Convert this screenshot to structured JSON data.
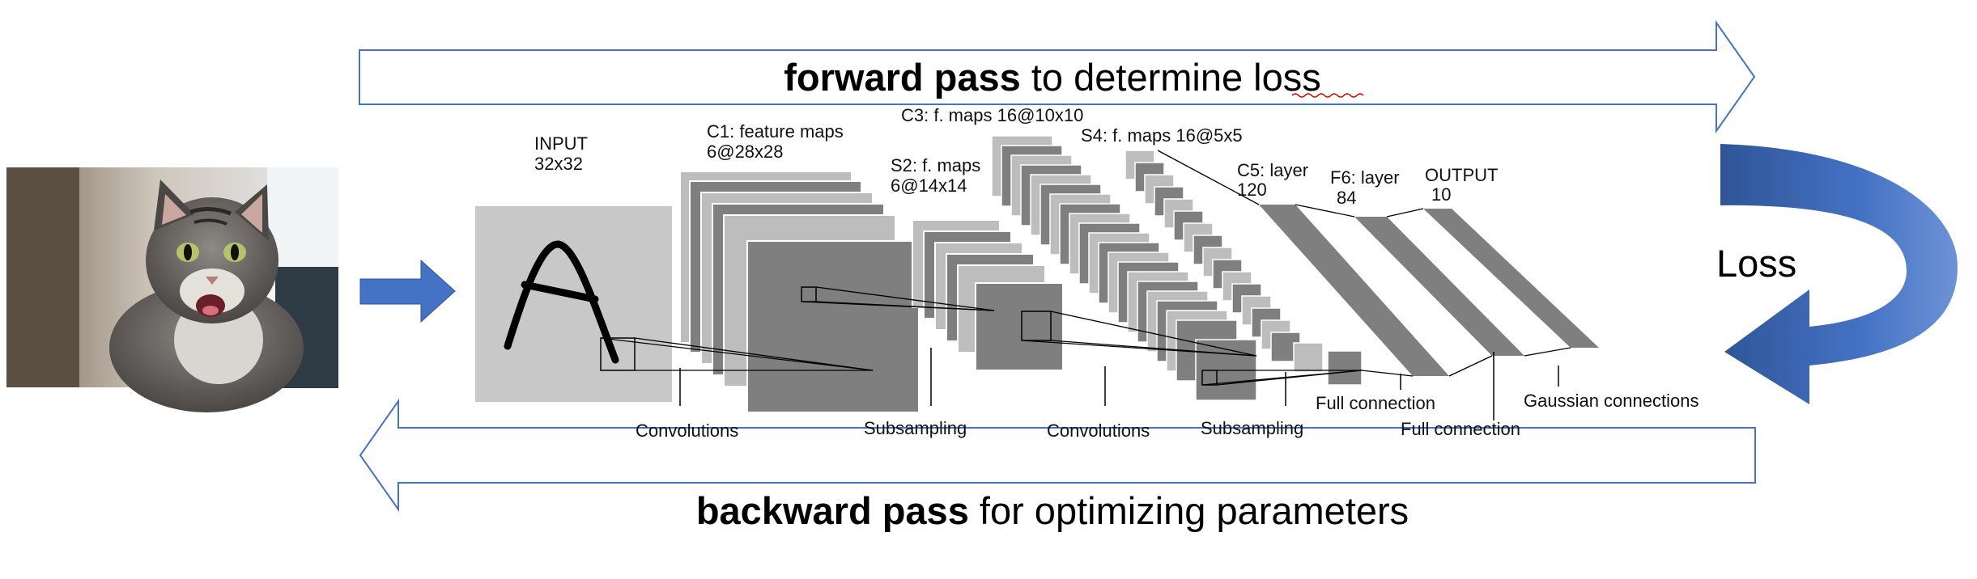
{
  "forward_arrow": {
    "bold": "forward pass",
    "rest": " to determine loss"
  },
  "backward_arrow": {
    "bold": "backward pass",
    "rest": " for optimizing parameters"
  },
  "loss_label": "Loss",
  "input_image": {
    "subject": "cat photo"
  },
  "network": {
    "input": {
      "title": "INPUT",
      "size": "32x32"
    },
    "c1": {
      "title": "C1: feature maps",
      "size": "6@28x28"
    },
    "s2": {
      "title": "S2: f. maps",
      "size": "6@14x14"
    },
    "c3": {
      "title": "C3: f. maps 16@10x10"
    },
    "s4": {
      "title": "S4: f. maps 16@5x5"
    },
    "c5": {
      "title": "C5: layer",
      "size": "120"
    },
    "f6": {
      "title": "F6: layer",
      "size": "84"
    },
    "output": {
      "title": "OUTPUT",
      "size": "10"
    },
    "operations": {
      "conv1": "Convolutions",
      "sub1": "Subsampling",
      "conv2": "Convolutions",
      "sub2": "Subsampling",
      "full1": "Full connection",
      "full2": "Full connection",
      "gauss": "Gaussian connections"
    }
  },
  "colors": {
    "arrow_outline": "#4472c4",
    "arrow_fill": "#4472c4",
    "map_light": "#bdbdbd",
    "map_dark": "#7f7f7f",
    "input_bg": "#c8c8c8"
  }
}
